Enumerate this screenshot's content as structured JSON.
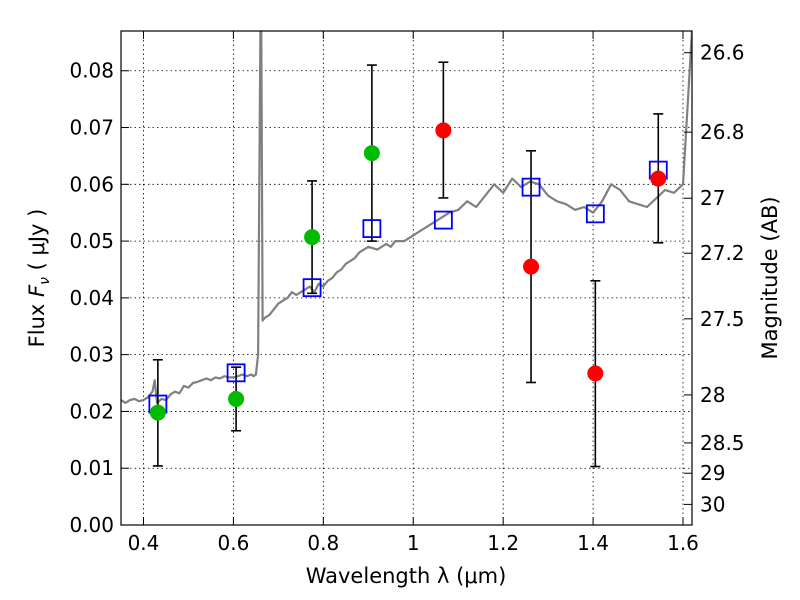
{
  "chart_data": {
    "type": "scatter",
    "xlabel": "Wavelength  λ (μm)",
    "ylabel": "Flux  F_ν  ( μJy )",
    "ylabel_parts": {
      "pre": "Flux ",
      "sym": "F",
      "sub": "ν",
      "post": "  ( μJy )"
    },
    "y2label": "Magnitude (AB)",
    "xlim": [
      0.35,
      1.62
    ],
    "ylim": [
      0.0,
      0.087
    ],
    "grid": true,
    "x_ticks": [
      {
        "v": 0.4,
        "label": "0.4"
      },
      {
        "v": 0.6,
        "label": "0.6"
      },
      {
        "v": 0.8,
        "label": "0.8"
      },
      {
        "v": 1.0,
        "label": "1"
      },
      {
        "v": 1.2,
        "label": "1.2"
      },
      {
        "v": 1.4,
        "label": "1.4"
      },
      {
        "v": 1.6,
        "label": "1.6"
      }
    ],
    "y_ticks": [
      {
        "v": 0.0,
        "label": "0.00"
      },
      {
        "v": 0.01,
        "label": "0.01"
      },
      {
        "v": 0.02,
        "label": "0.02"
      },
      {
        "v": 0.03,
        "label": "0.03"
      },
      {
        "v": 0.04,
        "label": "0.04"
      },
      {
        "v": 0.05,
        "label": "0.05"
      },
      {
        "v": 0.06,
        "label": "0.06"
      },
      {
        "v": 0.07,
        "label": "0.07"
      },
      {
        "v": 0.08,
        "label": "0.08"
      }
    ],
    "y2_ticks": [
      {
        "mag": 26.6,
        "label": "26.6"
      },
      {
        "mag": 26.8,
        "label": "26.8"
      },
      {
        "mag": 27.0,
        "label": "27"
      },
      {
        "mag": 27.2,
        "label": "27.2"
      },
      {
        "mag": 27.5,
        "label": "27.5"
      },
      {
        "mag": 28.0,
        "label": "28"
      },
      {
        "mag": 28.5,
        "label": "28.5"
      },
      {
        "mag": 29.0,
        "label": "29"
      },
      {
        "mag": 30.0,
        "label": "30"
      }
    ],
    "series": [
      {
        "kind": "spectrum",
        "color": "#808080",
        "x": [
          0.35,
          0.36,
          0.37,
          0.38,
          0.39,
          0.4,
          0.41,
          0.42,
          0.425,
          0.43,
          0.44,
          0.45,
          0.46,
          0.47,
          0.48,
          0.49,
          0.5,
          0.51,
          0.52,
          0.53,
          0.54,
          0.55,
          0.56,
          0.57,
          0.58,
          0.59,
          0.6,
          0.61,
          0.62,
          0.63,
          0.64,
          0.645,
          0.65,
          0.655,
          0.66,
          0.662,
          0.665,
          0.67,
          0.68,
          0.69,
          0.7,
          0.71,
          0.72,
          0.73,
          0.74,
          0.75,
          0.76,
          0.77,
          0.78,
          0.79,
          0.8,
          0.81,
          0.82,
          0.83,
          0.84,
          0.85,
          0.86,
          0.87,
          0.88,
          0.9,
          0.92,
          0.94,
          0.95,
          0.96,
          0.98,
          1.0,
          1.02,
          1.04,
          1.06,
          1.08,
          1.1,
          1.12,
          1.14,
          1.16,
          1.18,
          1.2,
          1.22,
          1.24,
          1.26,
          1.28,
          1.3,
          1.32,
          1.34,
          1.36,
          1.38,
          1.4,
          1.42,
          1.44,
          1.46,
          1.48,
          1.5,
          1.52,
          1.54,
          1.56,
          1.58,
          1.6,
          1.62
        ],
        "y": [
          0.022,
          0.0215,
          0.022,
          0.0222,
          0.0218,
          0.022,
          0.0225,
          0.0235,
          0.0255,
          0.0215,
          0.0222,
          0.022,
          0.023,
          0.0235,
          0.0232,
          0.0245,
          0.0242,
          0.025,
          0.0252,
          0.0255,
          0.0258,
          0.0255,
          0.026,
          0.0258,
          0.0262,
          0.026,
          0.026,
          0.0262,
          0.0265,
          0.0262,
          0.0265,
          0.0262,
          0.0265,
          0.03,
          0.087,
          0.087,
          0.036,
          0.0365,
          0.037,
          0.038,
          0.039,
          0.0395,
          0.04,
          0.041,
          0.0405,
          0.041,
          0.0415,
          0.042,
          0.041,
          0.0425,
          0.042,
          0.043,
          0.0435,
          0.0445,
          0.045,
          0.046,
          0.0465,
          0.047,
          0.048,
          0.049,
          0.0485,
          0.0495,
          0.049,
          0.05,
          0.05,
          0.051,
          0.052,
          0.053,
          0.054,
          0.055,
          0.0555,
          0.057,
          0.056,
          0.058,
          0.06,
          0.0585,
          0.061,
          0.0595,
          0.0605,
          0.06,
          0.058,
          0.057,
          0.0565,
          0.0555,
          0.056,
          0.055,
          0.057,
          0.06,
          0.059,
          0.057,
          0.0565,
          0.056,
          0.0575,
          0.059,
          0.0585,
          0.06,
          0.087
        ]
      },
      {
        "kind": "markers",
        "marker": "square",
        "color": "#0000ff",
        "x": [
          0.432,
          0.606,
          0.775,
          0.908,
          1.067,
          1.262,
          1.405,
          1.545
        ],
        "y": [
          0.0213,
          0.0268,
          0.0418,
          0.0522,
          0.0537,
          0.0595,
          0.0548,
          0.0625
        ]
      },
      {
        "kind": "markers",
        "marker": "circle",
        "color": "#00bb00",
        "x": [
          0.432,
          0.606,
          0.775,
          0.908
        ],
        "y": [
          0.0198,
          0.0222,
          0.0507,
          0.0655
        ],
        "yerr_low": [
          0.0104,
          0.0166,
          0.0408,
          0.05
        ],
        "yerr_high": [
          0.0291,
          0.0278,
          0.0606,
          0.081
        ]
      },
      {
        "kind": "markers",
        "marker": "circle",
        "color": "#ff0000",
        "x": [
          1.067,
          1.262,
          1.405,
          1.545
        ],
        "y": [
          0.0695,
          0.0455,
          0.0267,
          0.061
        ],
        "yerr_low": [
          0.0576,
          0.0251,
          0.0103,
          0.0497
        ],
        "yerr_high": [
          0.0815,
          0.0659,
          0.043,
          0.0724
        ]
      }
    ]
  }
}
